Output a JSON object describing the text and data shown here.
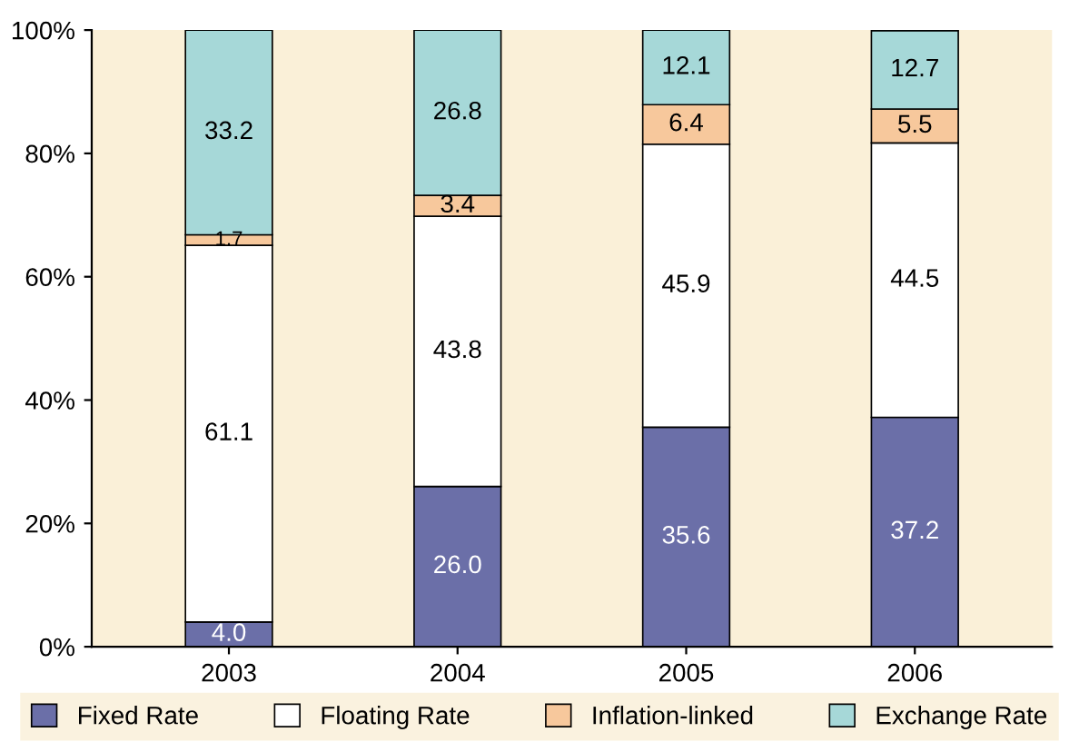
{
  "chart_data": {
    "type": "bar",
    "stacked": true,
    "categories": [
      "2003",
      "2004",
      "2005",
      "2006"
    ],
    "series": [
      {
        "name": "Fixed Rate",
        "color": "#6b6fa8",
        "values": [
          4.0,
          26.0,
          35.6,
          37.2
        ],
        "value_labels": [
          "4.0",
          "26.0",
          "35.6",
          "37.2"
        ]
      },
      {
        "name": "Floating Rate",
        "color": "#ffffff",
        "values": [
          61.1,
          43.8,
          45.9,
          44.5
        ],
        "value_labels": [
          "61.1",
          "43.8",
          "45.9",
          "44.5"
        ]
      },
      {
        "name": "Inflation-linked",
        "color": "#f7c89c",
        "values": [
          1.7,
          3.4,
          6.4,
          5.5
        ],
        "value_labels": [
          "1.7",
          "3.4",
          "6.4",
          "5.5"
        ]
      },
      {
        "name": "Exchange Rate",
        "color": "#a6d8d8",
        "values": [
          33.2,
          26.8,
          12.1,
          12.7
        ],
        "value_labels": [
          "33.2",
          "26.8",
          "12.1",
          "12.7"
        ]
      }
    ],
    "ylim": [
      0,
      100
    ],
    "yticks": [
      {
        "value": 0,
        "label": "0%"
      },
      {
        "value": 20,
        "label": "20%"
      },
      {
        "value": 40,
        "label": "40%"
      },
      {
        "value": 60,
        "label": "60%"
      },
      {
        "value": 80,
        "label": "80%"
      },
      {
        "value": 100,
        "label": "100%"
      }
    ],
    "grid": false,
    "legend": "bottom"
  }
}
